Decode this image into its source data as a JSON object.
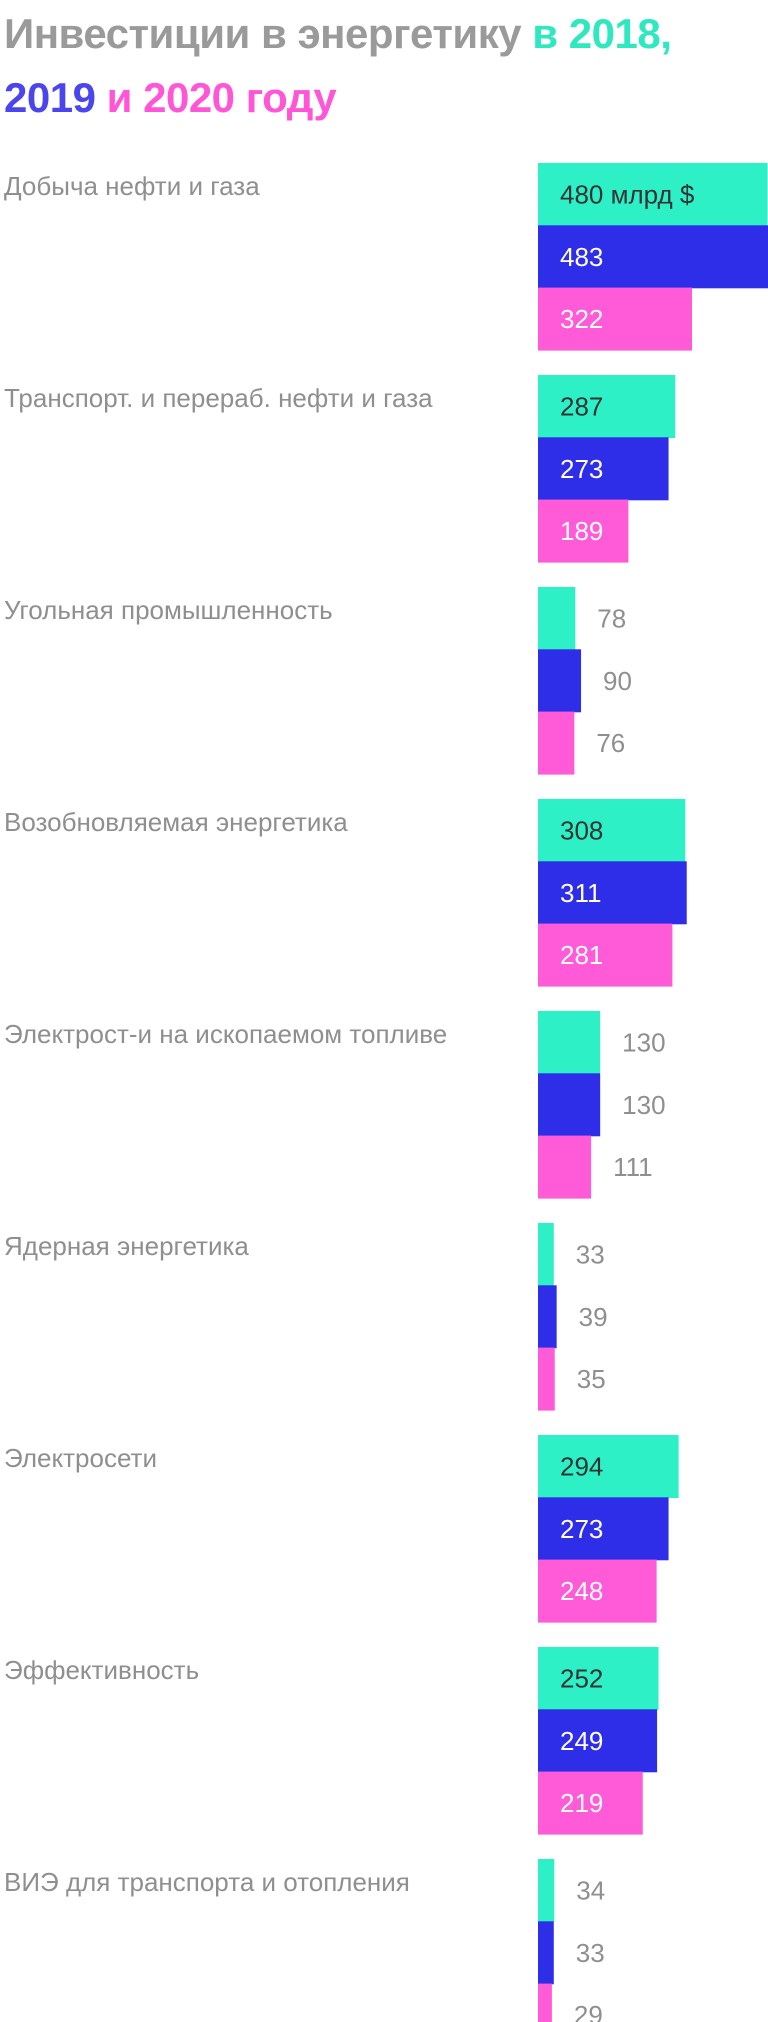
{
  "title": {
    "part1": "Инвестиции в энергетику",
    "part2": " в 2018,",
    "part3": "2019",
    "part4": " и ",
    "part5": "2020 году"
  },
  "colors": {
    "y2018": "#2ef0c6",
    "y2019": "#2e2ee8",
    "y2020": "#ff5ad8",
    "label": "#8f8f8f"
  },
  "chart_data": {
    "type": "bar",
    "orientation": "horizontal",
    "title": "Инвестиции в энергетику в 2018, 2019 и 2020 году",
    "unit_label": "480 млрд $",
    "categories": [
      "Добыча нефти и газа",
      "Транспорт. и перераб. нефти и газа",
      "Угольная промышленность",
      "Возобновляемая энергетика",
      "Электрост-и на ископаемом топливе",
      "Ядерная энергетика",
      "Электросети",
      "Эффективность",
      "ВИЭ для транспорта и отопления"
    ],
    "series": [
      {
        "name": "2018",
        "values": [
          480,
          287,
          78,
          308,
          130,
          33,
          294,
          252,
          34
        ]
      },
      {
        "name": "2019",
        "values": [
          483,
          273,
          90,
          311,
          130,
          39,
          273,
          249,
          33
        ]
      },
      {
        "name": "2020",
        "values": [
          322,
          189,
          76,
          281,
          111,
          35,
          248,
          219,
          29
        ]
      }
    ],
    "xlim": [
      0,
      483
    ],
    "grid": false,
    "legend": "none"
  }
}
